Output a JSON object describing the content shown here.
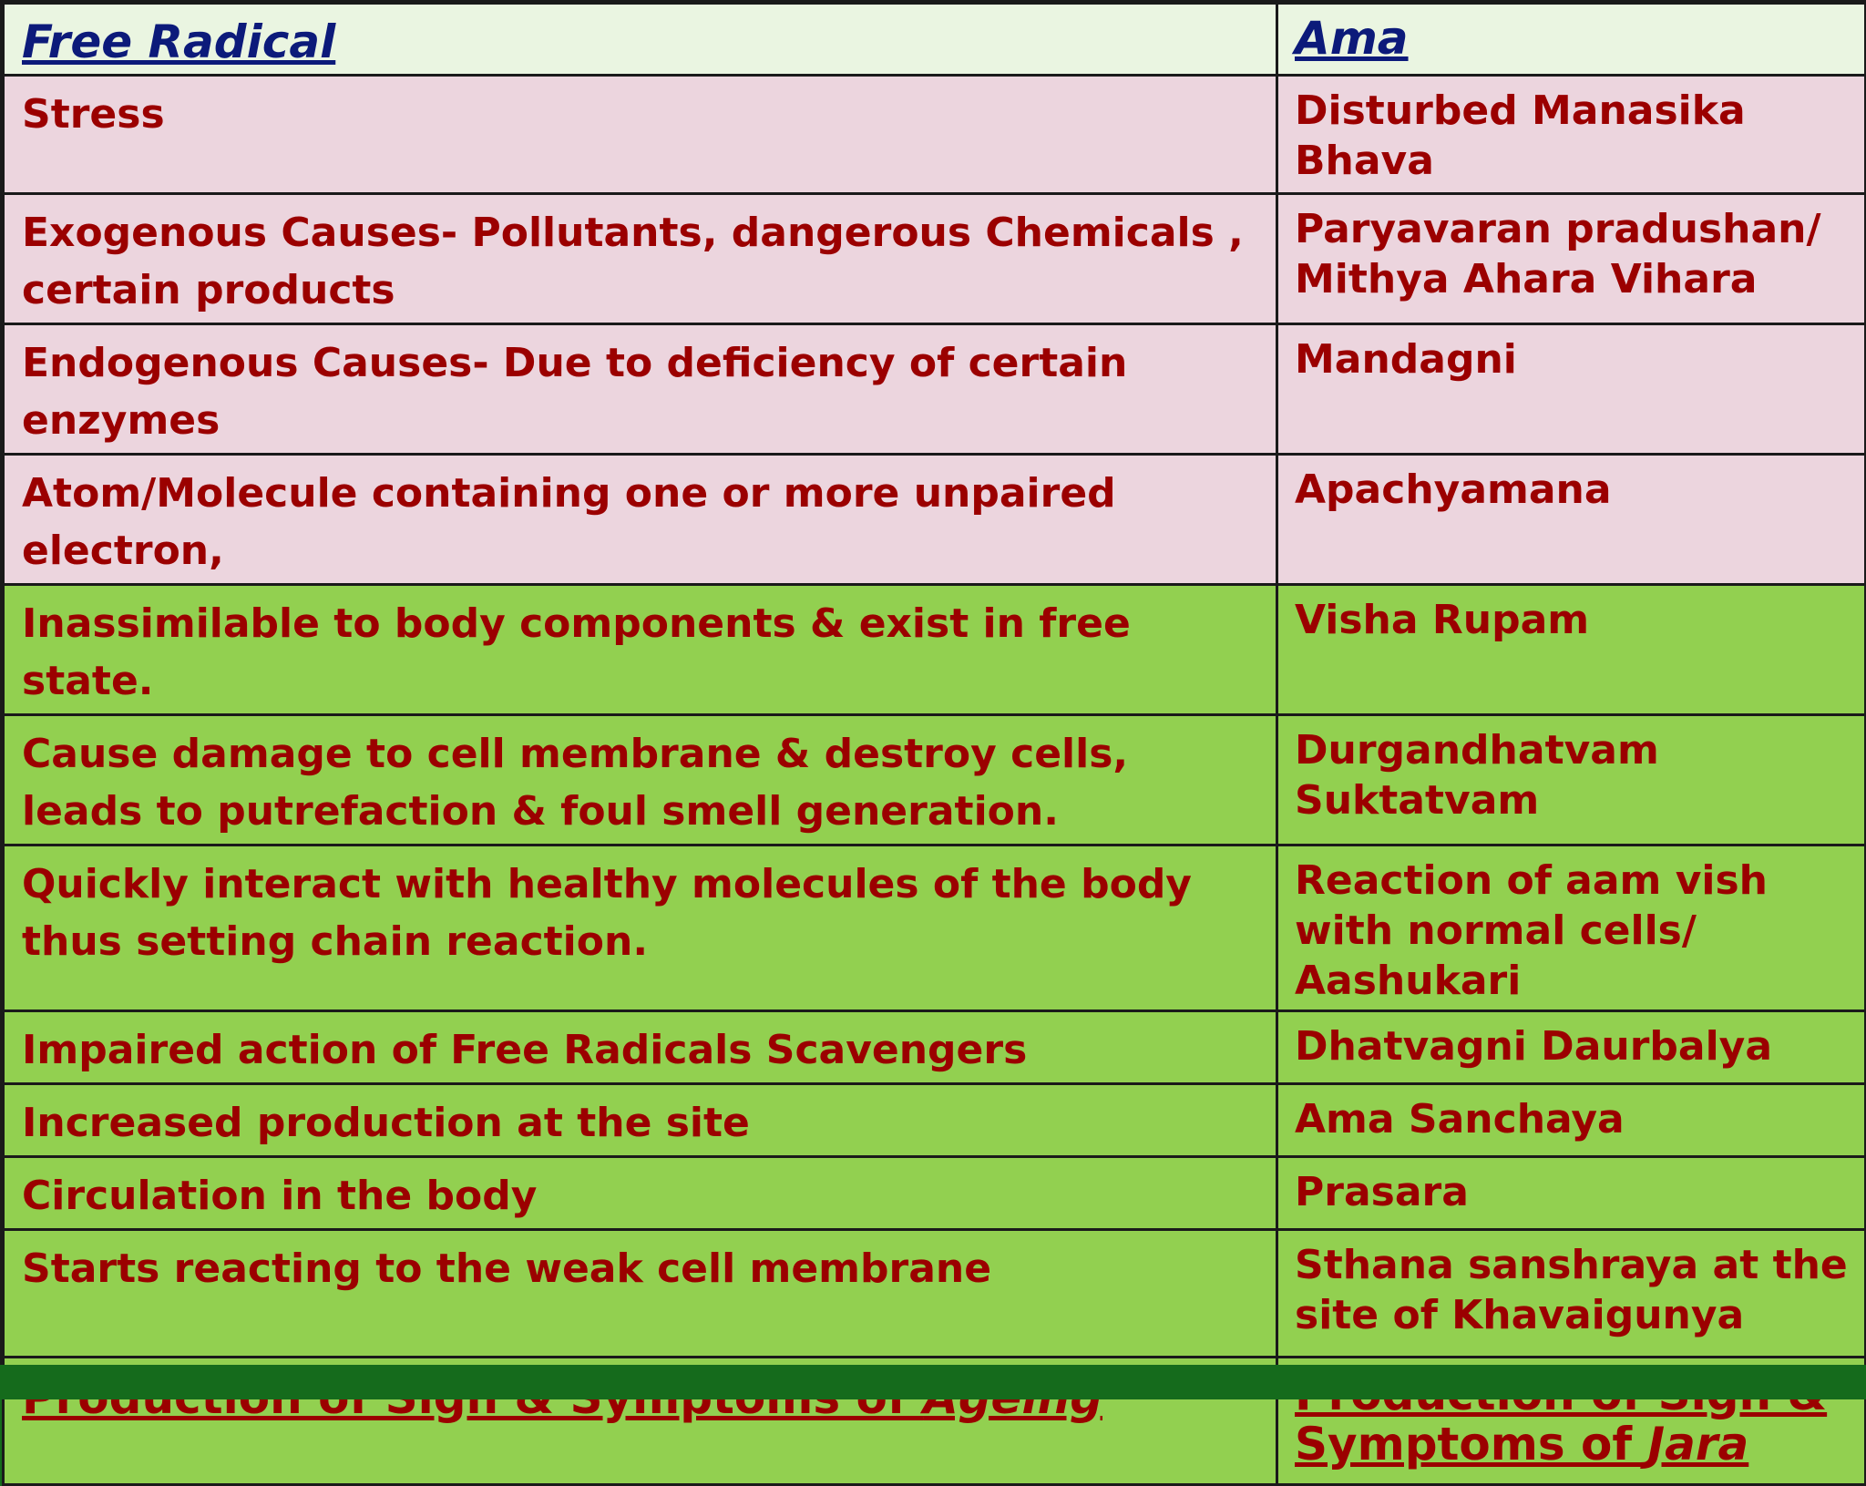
{
  "header": {
    "col1": "Free Radical",
    "col2": "Ama"
  },
  "rows": [
    {
      "left": "Stress",
      "right": "Disturbed Manasika Bhava"
    },
    {
      "left": "Exogenous Causes- Pollutants, dangerous Chemicals  , certain products",
      "right": " Paryavaran pradushan/ Mithya Ahara Vihara"
    },
    {
      "left": "Endogenous Causes- Due to deficiency of certain enzymes",
      "right": "Mandagni"
    },
    {
      "left": "Atom/Molecule containing one or more unpaired electron,",
      "right": "Apachyamana"
    },
    {
      "left": "Inassimilable to body components & exist in free state.",
      "right": "Visha Rupam"
    },
    {
      "left": "Cause damage to cell membrane & destroy cells, leads to putrefaction & foul smell generation.",
      "right": "Durgandhatvam Suktatvam"
    },
    {
      "left": "Quickly interact with healthy molecules of the body thus setting chain reaction.",
      "right": "Reaction of aam vish with normal cells/ Aashukari"
    },
    {
      "left": "Impaired action of Free Radicals Scavengers",
      "right": "Dhatvagni Daurbalya"
    },
    {
      "left": "Increased production at the site",
      "right": "Ama Sanchaya"
    },
    {
      "left": "Circulation in the body",
      "right": "Prasara"
    },
    {
      "left": "Starts reacting to the weak cell membrane",
      "right": "Sthana sanshraya at the site of Khavaigunya"
    }
  ],
  "footer": {
    "left_prefix": "Production of Sign & Symptoms of ",
    "left_italic": "Ageing",
    "right_prefix": "Production of Sign & Symptoms of ",
    "right_italic": "Jara"
  },
  "colors": {
    "pink_row": "#ecd5de",
    "green_row": "#92d050",
    "text": "#9b0000",
    "header_text": "#0c1a7a",
    "bottom_band": "#156b1c"
  }
}
